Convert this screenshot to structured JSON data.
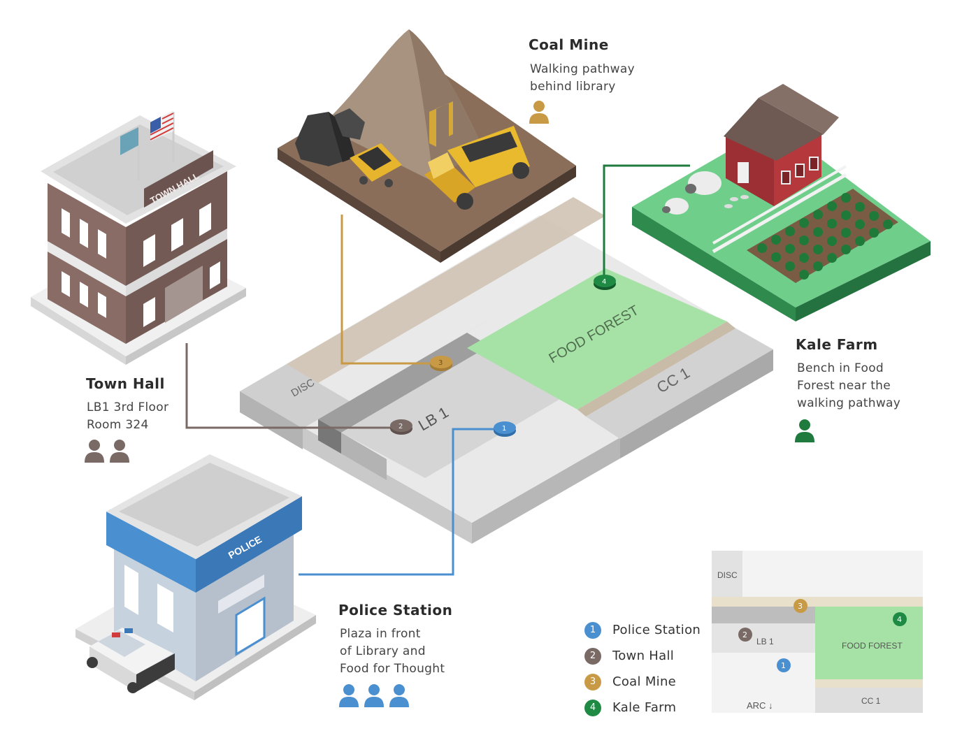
{
  "colors": {
    "police": "#4a8fd0",
    "townhall": "#7a6a66",
    "coal": "#c99a45",
    "kale": "#1f8a44",
    "food_forest": "#a6e2a6",
    "path": "#cfc3b2"
  },
  "locations": [
    {
      "id": "coal-mine",
      "title": "Coal Mine",
      "desc": [
        "Walking pathway",
        "behind library"
      ],
      "people": 1,
      "marker": "3"
    },
    {
      "id": "kale-farm",
      "title": "Kale Farm",
      "desc": [
        "Bench in Food",
        "Forest near the",
        "walking pathway"
      ],
      "people": 1,
      "marker": "4"
    },
    {
      "id": "town-hall",
      "title": "Town Hall",
      "desc": [
        "LB1 3rd Floor",
        "Room 324"
      ],
      "people": 2,
      "marker": "2"
    },
    {
      "id": "police-station",
      "title": "Police Station",
      "desc": [
        "Plaza in front",
        "of Library and",
        "Food for Thought"
      ],
      "people": 3,
      "marker": "1"
    }
  ],
  "iso_map": {
    "zones": [
      "DISC",
      "LB 1",
      "FOOD FOREST",
      "CC 1"
    ]
  },
  "building_signs": {
    "town_hall": "TOWN HALL",
    "police": "POLICE"
  },
  "mini_map": {
    "zones": [
      "DISC",
      "LB 1",
      "FOOD FOREST",
      "CC 1"
    ],
    "arc_label": "ARC ↓"
  },
  "legend": [
    {
      "num": "1",
      "label": "Police Station",
      "color": "#4a8fd0"
    },
    {
      "num": "2",
      "label": "Town Hall",
      "color": "#7a6a66"
    },
    {
      "num": "3",
      "label": "Coal Mine",
      "color": "#c99a45"
    },
    {
      "num": "4",
      "label": "Kale Farm",
      "color": "#1f8a44"
    }
  ]
}
